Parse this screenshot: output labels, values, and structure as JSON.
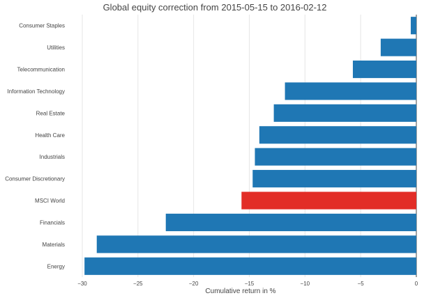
{
  "chart_data": {
    "type": "bar",
    "orientation": "horizontal",
    "title": "Global equity correction from 2015-05-15 to 2016-02-12",
    "xlabel": "Cumulative return in %",
    "ylabel": "",
    "xlim": [
      -30.5,
      0
    ],
    "xticks": [
      -30,
      -25,
      -20,
      -15,
      -10,
      -5,
      0
    ],
    "xtick_labels": [
      "−30",
      "−25",
      "−20",
      "−15",
      "−10",
      "−5",
      "0"
    ],
    "grid": "vertical",
    "categories": [
      "Consumer Staples",
      "Utilities",
      "Telecommunication",
      "Information Technology",
      "Real Estate",
      "Health Care",
      "Industrials",
      "Consumer Discretionary",
      "MSCI World",
      "Financials",
      "Materials",
      "Energy"
    ],
    "values": [
      -0.5,
      -3.2,
      -5.7,
      -11.8,
      -12.8,
      -14.1,
      -14.5,
      -14.7,
      -15.7,
      -22.5,
      -28.7,
      -29.8
    ],
    "colors": {
      "default": "#1f77b4",
      "highlight": "#e22d27",
      "highlight_category": "MSCI World"
    }
  }
}
